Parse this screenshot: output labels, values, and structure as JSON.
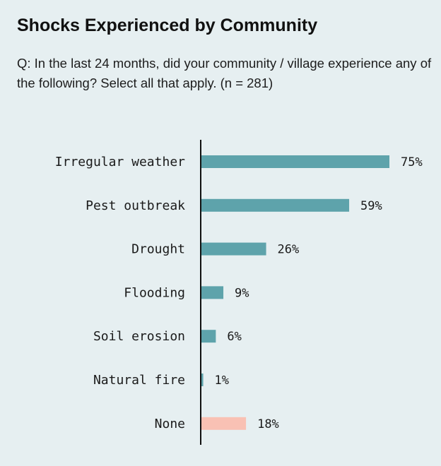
{
  "chart_data": {
    "type": "bar",
    "orientation": "horizontal",
    "title": "Shocks Experienced by Community",
    "subtitle": "Q: In the last 24 months, did your community / village experience any of the following? Select all that apply. (n = 281)",
    "categories": [
      "Irregular weather",
      "Pest outbreak",
      "Drought",
      "Flooding",
      "Soil erosion",
      "Natural fire",
      "None"
    ],
    "values": [
      75,
      59,
      26,
      9,
      6,
      1,
      18
    ],
    "value_labels": [
      "75%",
      "59%",
      "26%",
      "9%",
      "6%",
      "1%",
      "18%"
    ],
    "unit": "%",
    "xlim": [
      0,
      100
    ],
    "grid": false,
    "legend": "none",
    "colors": {
      "bar": "#5ea3ab",
      "none_bar": "#f9c1b4",
      "axis": "#111111",
      "background": "#e6eff1"
    }
  }
}
